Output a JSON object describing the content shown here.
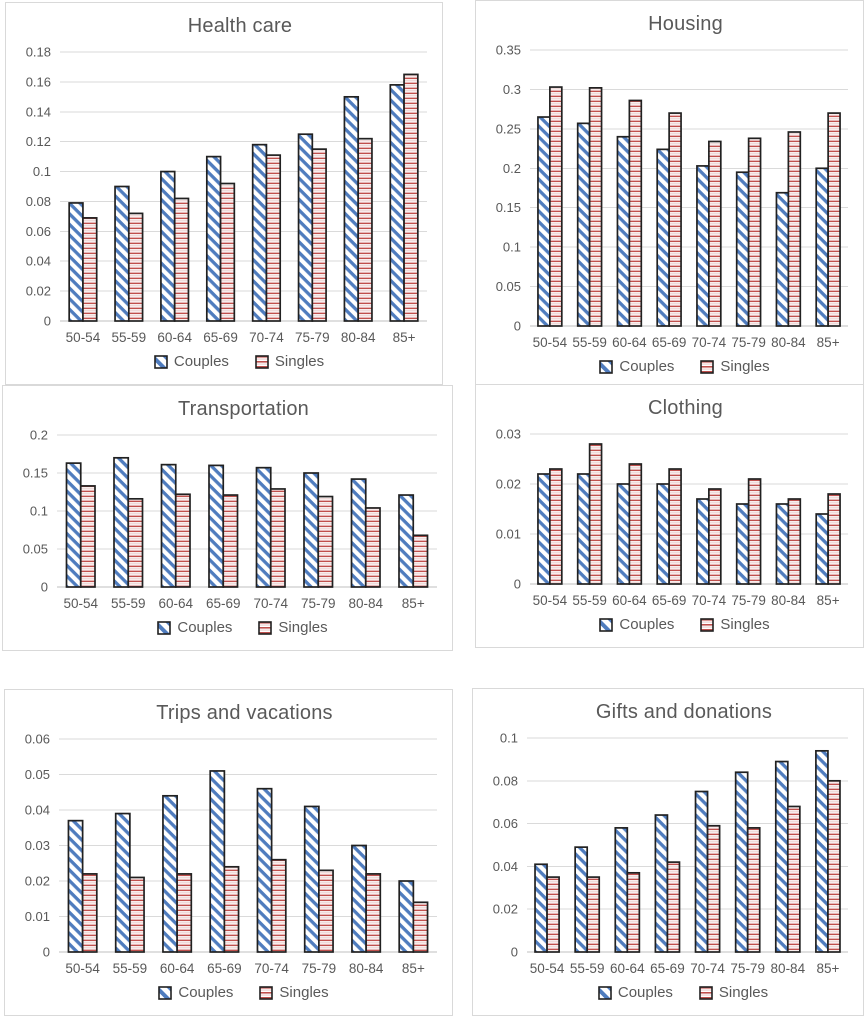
{
  "figure": {
    "description": "Six-panel grouped bar chart figure comparing budget shares of Couples vs Singles across age groups",
    "age_groups": [
      "50-54",
      "55-59",
      "60-64",
      "65-69",
      "70-74",
      "75-79",
      "80-84",
      "85+"
    ]
  },
  "legend": {
    "couples_label": "Couples",
    "singles_label": "Singles"
  },
  "colors": {
    "couples_hatch": "#4f7cbe",
    "singles_hatch": "#c0504d",
    "singles_hatch_light": "#e7c3c1",
    "bar_outline": "#212121",
    "text": "#595959",
    "grid": "#dadada",
    "axis": "#bfbfbf",
    "panel_border": "#d9d9d9",
    "background": "#ffffff"
  },
  "chart_data": [
    {
      "type": "bar",
      "title": "Health care",
      "categories": [
        "50-54",
        "55-59",
        "60-64",
        "65-69",
        "70-74",
        "75-79",
        "80-84",
        "85+"
      ],
      "series": [
        {
          "name": "Couples",
          "values": [
            0.079,
            0.09,
            0.1,
            0.11,
            0.118,
            0.125,
            0.15,
            0.158
          ]
        },
        {
          "name": "Singles",
          "values": [
            0.069,
            0.072,
            0.082,
            0.092,
            0.111,
            0.115,
            0.122,
            0.165
          ]
        }
      ],
      "xlabel": "",
      "ylabel": "",
      "ylim": [
        0,
        0.18
      ],
      "ytick_step": 0.02,
      "grid": true,
      "legend_position": "bottom"
    },
    {
      "type": "bar",
      "title": "Housing",
      "categories": [
        "50-54",
        "55-59",
        "60-64",
        "65-69",
        "70-74",
        "75-79",
        "80-84",
        "85+"
      ],
      "series": [
        {
          "name": "Couples",
          "values": [
            0.265,
            0.257,
            0.24,
            0.224,
            0.203,
            0.195,
            0.169,
            0.2
          ]
        },
        {
          "name": "Singles",
          "values": [
            0.303,
            0.302,
            0.286,
            0.27,
            0.234,
            0.238,
            0.246,
            0.27
          ]
        }
      ],
      "xlabel": "",
      "ylabel": "",
      "ylim": [
        0,
        0.35
      ],
      "ytick_step": 0.05,
      "grid": true,
      "legend_position": "bottom"
    },
    {
      "type": "bar",
      "title": "Transportation",
      "categories": [
        "50-54",
        "55-59",
        "60-64",
        "65-69",
        "70-74",
        "75-79",
        "80-84",
        "85+"
      ],
      "series": [
        {
          "name": "Couples",
          "values": [
            0.163,
            0.17,
            0.161,
            0.16,
            0.157,
            0.15,
            0.142,
            0.121
          ]
        },
        {
          "name": "Singles",
          "values": [
            0.133,
            0.116,
            0.122,
            0.121,
            0.129,
            0.119,
            0.104,
            0.068
          ]
        }
      ],
      "xlabel": "",
      "ylabel": "",
      "ylim": [
        0,
        0.2
      ],
      "ytick_step": 0.05,
      "grid": true,
      "legend_position": "bottom"
    },
    {
      "type": "bar",
      "title": "Clothing",
      "categories": [
        "50-54",
        "55-59",
        "60-64",
        "65-69",
        "70-74",
        "75-79",
        "80-84",
        "85+"
      ],
      "series": [
        {
          "name": "Couples",
          "values": [
            0.022,
            0.022,
            0.02,
            0.02,
            0.017,
            0.016,
            0.016,
            0.014
          ]
        },
        {
          "name": "Singles",
          "values": [
            0.023,
            0.028,
            0.024,
            0.023,
            0.019,
            0.021,
            0.017,
            0.018
          ]
        }
      ],
      "xlabel": "",
      "ylabel": "",
      "ylim": [
        0,
        0.03
      ],
      "ytick_step": 0.01,
      "grid": true,
      "legend_position": "bottom"
    },
    {
      "type": "bar",
      "title": "Trips and vacations",
      "categories": [
        "50-54",
        "55-59",
        "60-64",
        "65-69",
        "70-74",
        "75-79",
        "80-84",
        "85+"
      ],
      "series": [
        {
          "name": "Couples",
          "values": [
            0.037,
            0.039,
            0.044,
            0.051,
            0.046,
            0.041,
            0.03,
            0.02
          ]
        },
        {
          "name": "Singles",
          "values": [
            0.022,
            0.021,
            0.022,
            0.024,
            0.026,
            0.023,
            0.022,
            0.014
          ]
        }
      ],
      "xlabel": "",
      "ylabel": "",
      "ylim": [
        0,
        0.06
      ],
      "ytick_step": 0.01,
      "grid": true,
      "legend_position": "bottom"
    },
    {
      "type": "bar",
      "title": "Gifts and donations",
      "categories": [
        "50-54",
        "55-59",
        "60-64",
        "65-69",
        "70-74",
        "75-79",
        "80-84",
        "85+"
      ],
      "series": [
        {
          "name": "Couples",
          "values": [
            0.041,
            0.049,
            0.058,
            0.064,
            0.075,
            0.084,
            0.089,
            0.094
          ]
        },
        {
          "name": "Singles",
          "values": [
            0.035,
            0.035,
            0.037,
            0.042,
            0.059,
            0.058,
            0.068,
            0.08
          ]
        }
      ],
      "xlabel": "",
      "ylabel": "",
      "ylim": [
        0,
        0.1
      ],
      "ytick_step": 0.02,
      "grid": true,
      "legend_position": "bottom"
    }
  ]
}
